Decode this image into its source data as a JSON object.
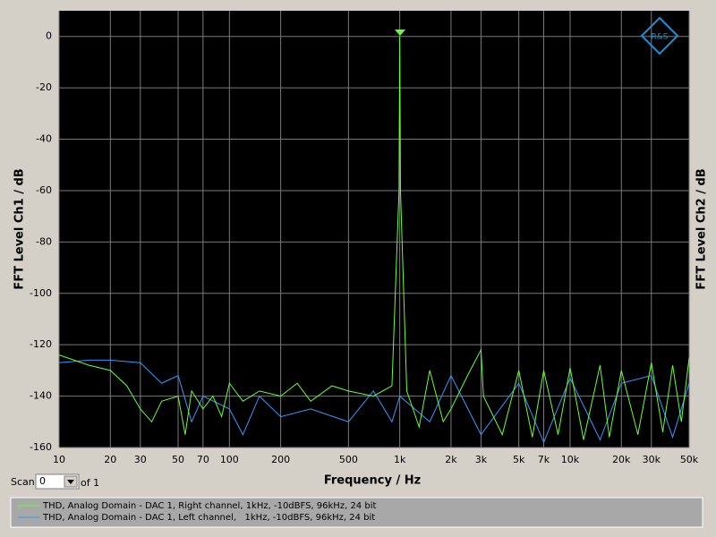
{
  "chart_data": {
    "type": "line",
    "ylabel": "FFT Level Ch1 / dB",
    "y2label": "FFT Level Ch2 / dB",
    "xlabel": "Frequency / Hz",
    "logo": "R&S",
    "xscale": "log",
    "grid": true,
    "xlim": [
      10,
      50000
    ],
    "ylim": [
      -160,
      10
    ],
    "xticks": [
      10,
      20,
      30,
      50,
      70,
      100,
      200,
      500,
      {
        "value": 1000,
        "label": "1k"
      },
      {
        "value": 2000,
        "label": "2k"
      },
      {
        "value": 3000,
        "label": "3k"
      },
      {
        "value": 5000,
        "label": "5k"
      },
      {
        "value": 7000,
        "label": "7k"
      },
      {
        "value": 10000,
        "label": "10k"
      },
      {
        "value": 20000,
        "label": "20k"
      },
      {
        "value": 30000,
        "label": "30k"
      },
      {
        "value": 50000,
        "label": "50k"
      }
    ],
    "yticks": [
      0,
      -20,
      -40,
      -60,
      -80,
      -100,
      -120,
      -140,
      -160
    ],
    "scan": {
      "label": "Scan",
      "value": "0",
      "of": "of 1"
    },
    "series": [
      {
        "name": "THD, Analog Domain - DAC 1, Right channel, 1kHz, -10dBFS, 96kHz, 24 bit",
        "color": "#66ff33",
        "x": [
          10,
          15,
          20,
          25,
          30,
          35,
          40,
          50,
          55,
          60,
          70,
          80,
          90,
          100,
          120,
          150,
          200,
          250,
          300,
          400,
          500,
          700,
          900,
          990,
          1000,
          1010,
          1100,
          1300,
          1500,
          1800,
          2000,
          2500,
          3000,
          3100,
          4000,
          5000,
          6000,
          7000,
          8500,
          10000,
          12000,
          15000,
          17000,
          20000,
          25000,
          30000,
          35000,
          40000,
          45000,
          50000
        ],
        "values": [
          -124,
          -128,
          -130,
          -136,
          -145,
          -150,
          -142,
          -140,
          -155,
          -138,
          -145,
          -140,
          -148,
          -135,
          -142,
          -138,
          -140,
          -135,
          -142,
          -136,
          -138,
          -140,
          -136,
          -60,
          0,
          -60,
          -138,
          -152,
          -130,
          -150,
          -145,
          -132,
          -122,
          -140,
          -155,
          -130,
          -156,
          -130,
          -155,
          -129,
          -157,
          -128,
          -156,
          -130,
          -155,
          -127,
          -154,
          -128,
          -150,
          -125
        ]
      },
      {
        "name": "THD, Analog Domain - DAC 1, Left channel,   1kHz, -10dBFS, 96kHz, 24 bit",
        "color": "#3399ff",
        "x": [
          10,
          15,
          20,
          30,
          40,
          50,
          60,
          70,
          100,
          120,
          150,
          200,
          300,
          500,
          700,
          900,
          1000,
          1500,
          2000,
          3000,
          5000,
          7000,
          10000,
          15000,
          20000,
          30000,
          40000,
          50000
        ],
        "values": [
          -127,
          -126,
          -126,
          -127,
          -135,
          -132,
          -150,
          -140,
          -145,
          -155,
          -140,
          -148,
          -145,
          -150,
          -138,
          -150,
          -140,
          -150,
          -132,
          -155,
          -135,
          -158,
          -133,
          -157,
          -135,
          -132,
          -156,
          -135
        ]
      }
    ]
  }
}
